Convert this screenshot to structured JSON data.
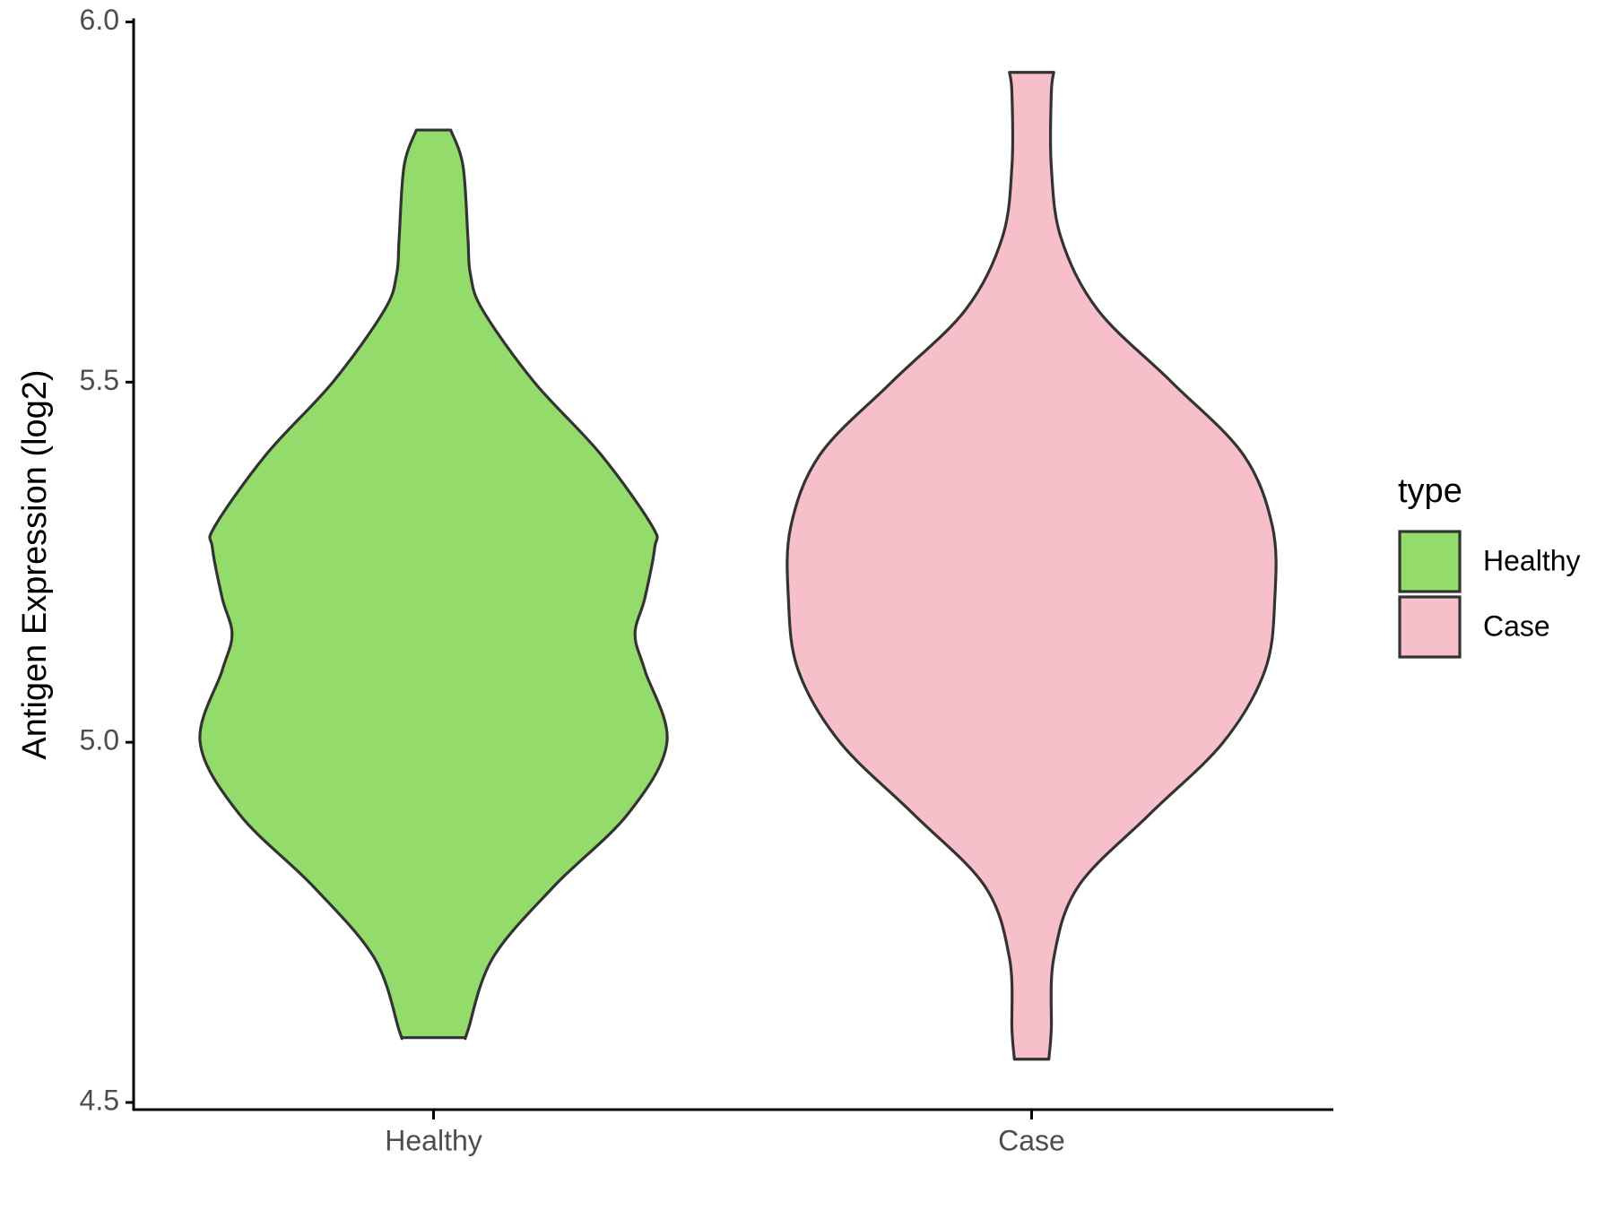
{
  "chart_data": {
    "type": "violin",
    "y_label": "Antigen Expression (log2)",
    "categories": [
      "Healthy",
      "Case"
    ],
    "series": [
      {
        "name": "Healthy",
        "color": "#93dc6b",
        "y": [
          4.59,
          4.6,
          4.7,
          4.8,
          4.9,
          5.0,
          5.1,
          5.15,
          5.2,
          5.27,
          5.3,
          5.4,
          5.5,
          5.6,
          5.65,
          5.7,
          5.8,
          5.85
        ],
        "density": [
          0.13,
          0.14,
          0.24,
          0.49,
          0.79,
          0.95,
          0.86,
          0.82,
          0.86,
          0.9,
          0.89,
          0.68,
          0.41,
          0.2,
          0.15,
          0.14,
          0.12,
          0.07
        ]
      },
      {
        "name": "Case",
        "color": "#f7bfca",
        "y": [
          4.56,
          4.6,
          4.7,
          4.8,
          4.9,
          5.0,
          5.1,
          5.2,
          5.3,
          5.4,
          5.5,
          5.6,
          5.7,
          5.8,
          5.9,
          5.93
        ],
        "density": [
          0.07,
          0.08,
          0.09,
          0.19,
          0.48,
          0.78,
          0.95,
          0.99,
          0.98,
          0.86,
          0.57,
          0.27,
          0.12,
          0.08,
          0.08,
          0.09
        ]
      }
    ],
    "ylim": [
      4.5,
      6.0
    ],
    "yticks": [
      4.5,
      {
        "value": 5.0,
        "label": "5.0"
      },
      5.5,
      {
        "value": 6.0,
        "label": "6.0"
      }
    ],
    "legend_title": "type",
    "legend_position": "right"
  }
}
